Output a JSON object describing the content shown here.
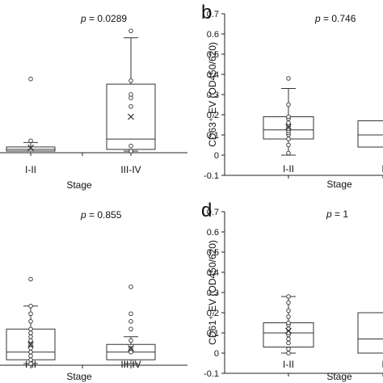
{
  "chart_data": [
    {
      "type": "box",
      "panel_letter": "",
      "p_label": "p",
      "p_value": "= 0.0289",
      "xlabel": "Stage",
      "ylabel": "",
      "categories": [
        "I-II",
        "III-IV"
      ],
      "boxes": [
        {
          "category": "I-II",
          "whisker_low": 0.0,
          "q1": 0.0,
          "median": 0.005,
          "q3": 0.012,
          "whisker_high": 0.025,
          "mean": 0.01,
          "outliers": [
            0.03,
            0.21
          ]
        },
        {
          "category": "III-IV",
          "whisker_low": 0.0,
          "q1": 0.005,
          "median": 0.035,
          "q3": 0.195,
          "whisker_high": 0.33,
          "mean": 0.1,
          "outliers": [
            0.0,
            0.015,
            0.13,
            0.155,
            0.165,
            0.205,
            0.35
          ]
        }
      ]
    },
    {
      "type": "box",
      "panel_letter": "b",
      "p_label": "p",
      "p_value": "= 0.746",
      "xlabel": "Stage",
      "ylabel": "CD63⁺-EV (OD450/620)",
      "ylim": [
        -0.1,
        0.7
      ],
      "yticks": [
        "-0.1",
        "0",
        "0.1",
        "0.2",
        "0.3",
        "0.4",
        "0.5",
        "0.6",
        "0.7"
      ],
      "categories": [
        "I-II",
        "I"
      ],
      "boxes": [
        {
          "category": "I-II",
          "whisker_low": 0.0,
          "q1": 0.08,
          "median": 0.125,
          "q3": 0.19,
          "whisker_high": 0.33,
          "mean": 0.14,
          "points": [
            0.01,
            0.05,
            0.08,
            0.1,
            0.11,
            0.12,
            0.13,
            0.14,
            0.15,
            0.16,
            0.18,
            0.19,
            0.25,
            0.38
          ]
        },
        {
          "category": "I",
          "whisker_low": 0.04,
          "q1": 0.04,
          "median": 0.1,
          "q3": 0.17,
          "whisker_high": 0.17,
          "mean": null,
          "points": []
        }
      ]
    },
    {
      "type": "box",
      "panel_letter": "",
      "p_label": "p",
      "p_value": "= 0.855",
      "xlabel": "Stage",
      "ylabel": "",
      "categories": [
        "I-II",
        "III-IV"
      ],
      "boxes": [
        {
          "category": "I-II",
          "whisker_low": 0.0,
          "q1": 0.01,
          "median": 0.03,
          "q3": 0.09,
          "whisker_high": 0.15,
          "mean": 0.05,
          "points": [
            0.0,
            0.01,
            0.02,
            0.03,
            0.04,
            0.05,
            0.06,
            0.07,
            0.08,
            0.09,
            0.11,
            0.13,
            0.15,
            0.22
          ]
        },
        {
          "category": "III-IV",
          "whisker_low": 0.0,
          "q1": 0.01,
          "median": 0.03,
          "q3": 0.05,
          "whisker_high": 0.07,
          "mean": 0.04,
          "points": [
            0.03,
            0.04,
            0.06,
            0.09,
            0.11,
            0.13,
            0.2
          ]
        }
      ]
    },
    {
      "type": "box",
      "panel_letter": "d",
      "p_label": "p",
      "p_value": "= 1",
      "xlabel": "Stage",
      "ylabel": "CD61⁺-EV (OD450/620)",
      "ylim": [
        -0.1,
        0.7
      ],
      "yticks": [
        "-0.1",
        "0",
        "0.1",
        "0.2",
        "0.3",
        "0.4",
        "0.5",
        "0.6",
        "0.7"
      ],
      "categories": [
        "I-II",
        "I"
      ],
      "boxes": [
        {
          "category": "I-II",
          "whisker_low": 0.0,
          "q1": 0.03,
          "median": 0.1,
          "q3": 0.15,
          "whisker_high": 0.28,
          "mean": 0.11,
          "points": [
            0.0,
            0.02,
            0.05,
            0.07,
            0.09,
            0.1,
            0.12,
            0.14,
            0.15,
            0.18,
            0.21,
            0.25,
            0.28
          ]
        },
        {
          "category": "I",
          "whisker_low": 0.0,
          "q1": 0.0,
          "median": 0.07,
          "q3": 0.2,
          "whisker_high": 0.2,
          "mean": null,
          "points": []
        }
      ]
    }
  ]
}
